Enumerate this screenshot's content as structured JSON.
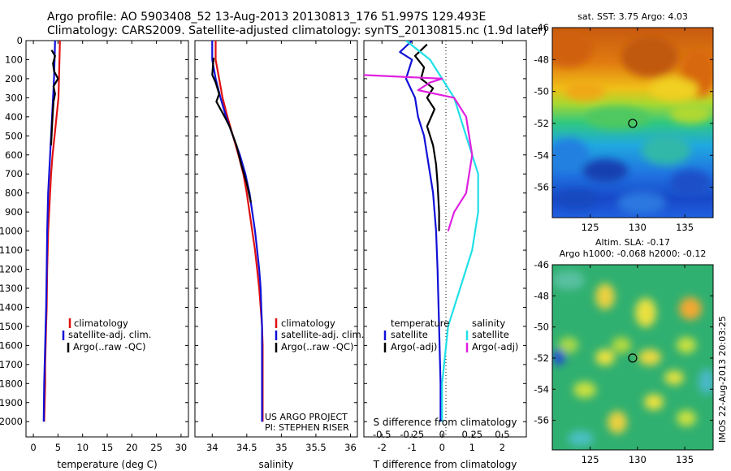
{
  "header": {
    "line1": "Argo profile: AO 5903408_52 13-Aug-2013 20130813_176 51.997S 129.493E",
    "line2": "Climatology: CARS2009. Satellite-adjusted climatology: synTS_20130815.nc (1.9d later)"
  },
  "colors": {
    "climatology": "#e01010",
    "satellite": "#1010d8",
    "argo": "#000000",
    "sat_salinity": "#20e0e8",
    "argo_salinity": "#e020e0"
  },
  "chart_data": [
    {
      "type": "line",
      "id": "temperature",
      "xlabel": "temperature (deg C)",
      "ylabel": "",
      "xlim": [
        -1.5,
        31.5
      ],
      "ylim": [
        2080,
        0
      ],
      "x_ticks": [
        0,
        5,
        10,
        15,
        20,
        25,
        30
      ],
      "y_ticks": [
        0,
        100,
        200,
        300,
        400,
        500,
        600,
        700,
        800,
        900,
        1000,
        1100,
        1200,
        1300,
        1400,
        1500,
        1600,
        1700,
        1800,
        1900,
        2000
      ],
      "legend": [
        "climatology",
        "satellite-adj. clim.",
        "Argo(..raw -QC)"
      ],
      "series": [
        {
          "name": "climatology",
          "color": "#e01010",
          "x": [
            5.4,
            5.3,
            5.2,
            5.1,
            4.7,
            4.3,
            3.9,
            3.6,
            3.4,
            3.2,
            3.0,
            2.9,
            2.8,
            2.7,
            2.6,
            2.5,
            2.4,
            2.4,
            2.3,
            2.2
          ],
          "y": [
            0,
            100,
            200,
            300,
            400,
            500,
            600,
            700,
            800,
            900,
            1000,
            1100,
            1200,
            1400,
            1500,
            1600,
            1700,
            1800,
            1900,
            2000
          ]
        },
        {
          "name": "satellite-adj. clim.",
          "color": "#1010d8",
          "x": [
            4.4,
            4.3,
            4.2,
            4.0,
            3.8,
            3.6,
            3.4,
            3.2,
            3.0,
            2.9,
            2.8,
            2.7,
            2.6,
            2.5,
            2.4,
            2.3,
            2.2,
            2.1
          ],
          "y": [
            0,
            100,
            200,
            300,
            400,
            500,
            600,
            700,
            800,
            900,
            1000,
            1200,
            1400,
            1500,
            1600,
            1700,
            1800,
            2000
          ]
        },
        {
          "name": "Argo(..raw -QC)",
          "color": "#000000",
          "x": [
            3.7,
            4.4,
            4.0,
            4.2,
            5.0,
            4.1,
            4.4,
            4.1,
            3.9,
            3.7,
            3.6
          ],
          "y": [
            50,
            80,
            120,
            160,
            200,
            240,
            280,
            320,
            400,
            500,
            550
          ]
        }
      ]
    },
    {
      "type": "line",
      "id": "salinity",
      "xlabel": "salinity",
      "ylabel": "",
      "xlim": [
        33.75,
        36.1
      ],
      "ylim": [
        2080,
        0
      ],
      "x_ticks": [
        34,
        34.5,
        35,
        35.5,
        36
      ],
      "legend": [
        "climatology",
        "satellite-adj. clim.",
        "Argo(..raw -QC)"
      ],
      "annotation": [
        "US ARGO PROJECT",
        "PI: STEPHEN RISER"
      ],
      "series": [
        {
          "name": "climatology",
          "color": "#e01010",
          "x": [
            34.05,
            34.05,
            34.1,
            34.15,
            34.22,
            34.3,
            34.38,
            34.45,
            34.5,
            34.54,
            34.58,
            34.62,
            34.65,
            34.68,
            34.7,
            34.72,
            34.73,
            34.73,
            34.73
          ],
          "y": [
            0,
            100,
            200,
            300,
            400,
            500,
            600,
            700,
            800,
            900,
            1000,
            1100,
            1200,
            1300,
            1400,
            1500,
            1600,
            1800,
            2000
          ]
        },
        {
          "name": "satellite-adj. clim.",
          "color": "#1010d8",
          "x": [
            34.0,
            34.0,
            34.05,
            34.12,
            34.2,
            34.3,
            34.4,
            34.48,
            34.54,
            34.58,
            34.62,
            34.65,
            34.68,
            34.7,
            34.71,
            34.72,
            34.72,
            34.72
          ],
          "y": [
            0,
            100,
            200,
            300,
            400,
            500,
            600,
            700,
            800,
            900,
            1000,
            1100,
            1200,
            1300,
            1400,
            1500,
            1800,
            2000
          ]
        },
        {
          "name": "Argo(..raw -QC)",
          "color": "#000000",
          "x": [
            34.02,
            34.0,
            34.05,
            34.1,
            34.06,
            34.12,
            34.18,
            34.25,
            34.35,
            34.42,
            34.5,
            34.56
          ],
          "y": [
            90,
            180,
            220,
            280,
            320,
            360,
            400,
            450,
            550,
            650,
            750,
            850
          ]
        }
      ]
    },
    {
      "type": "line",
      "id": "difference",
      "xlabel": "T difference from climatology",
      "xlabel_top": "S difference from climatology",
      "ylabel": "",
      "xlim": [
        -2.6,
        2.8
      ],
      "ylim": [
        2080,
        0
      ],
      "x_ticks": [
        -2,
        -1,
        0,
        1,
        2
      ],
      "s_ticks": [
        "-0.5",
        "-0.25",
        "0",
        "0.25",
        "0.5"
      ],
      "legend_temperature": [
        "temperature",
        "satellite",
        "Argo(-adj)"
      ],
      "legend_salinity": [
        "salinity",
        "satellite",
        "Argo(-adj)"
      ],
      "series": [
        {
          "name": "satellite",
          "group": "temperature",
          "color": "#1010d8",
          "x": [
            -1.0,
            -1.4,
            -1.0,
            -1.2,
            -0.9,
            -0.8,
            -0.6,
            -0.5,
            -0.4,
            -0.3,
            -0.2,
            -0.15,
            -0.1,
            -0.05,
            -0.05
          ],
          "y": [
            0,
            60,
            100,
            200,
            300,
            400,
            500,
            600,
            700,
            800,
            1000,
            1200,
            1500,
            1800,
            2000
          ]
        },
        {
          "name": "Argo(-adj)",
          "group": "temperature",
          "color": "#000000",
          "x": [
            -0.5,
            -0.9,
            -0.6,
            -0.7,
            -0.3,
            -0.5,
            -0.25,
            -0.5,
            -0.3,
            -0.2,
            -0.15,
            -0.1,
            -0.1
          ],
          "y": [
            20,
            80,
            140,
            200,
            250,
            300,
            360,
            450,
            550,
            650,
            750,
            900,
            1000
          ]
        },
        {
          "name": "satellite",
          "group": "salinity",
          "color": "#20e0e8",
          "x": [
            -0.3,
            -0.1,
            0.0,
            0.1,
            0.2,
            0.3,
            0.3,
            0.25,
            0.15,
            0.05,
            0.0,
            0.0
          ],
          "y": [
            0,
            100,
            200,
            300,
            500,
            700,
            900,
            1100,
            1300,
            1500,
            1800,
            2000
          ]
        },
        {
          "name": "Argo(-adj)",
          "group": "salinity",
          "color": "#e020e0",
          "x": [
            -1.2,
            -1.0,
            0.0,
            -0.1,
            -0.2,
            0.1,
            0.2,
            0.25,
            0.2,
            0.1,
            0.05
          ],
          "y": [
            150,
            170,
            200,
            220,
            260,
            300,
            400,
            600,
            800,
            900,
            1000
          ]
        }
      ]
    },
    {
      "type": "heatmap",
      "id": "sst_map",
      "title": "sat. SST: 3.75 Argo: 4.03",
      "xlim": [
        121,
        138
      ],
      "ylim": [
        -57.9,
        -46
      ],
      "x_ticks": [
        125,
        130,
        135
      ],
      "y_ticks": [
        -46,
        -48,
        -50,
        -52,
        -54,
        -56
      ],
      "marker": {
        "lon": 129.493,
        "lat": -51.997
      }
    },
    {
      "type": "heatmap",
      "id": "sla_map",
      "title": "Altim. SLA: -0.17",
      "subtitle": "Argo h1000: -0.068 h2000: -0.12",
      "xlim": [
        121,
        138
      ],
      "ylim": [
        -57.9,
        -46
      ],
      "x_ticks": [
        125,
        130,
        135
      ],
      "y_ticks": [
        -46,
        -48,
        -50,
        -52,
        -54,
        -56
      ],
      "marker": {
        "lon": 129.493,
        "lat": -51.997
      },
      "side_label": "IMOS 22-Aug-2013 20:03:25"
    }
  ]
}
